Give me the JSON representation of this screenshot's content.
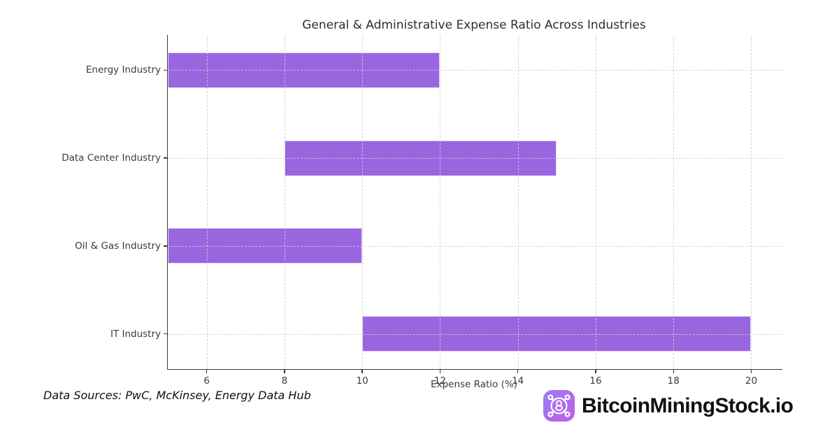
{
  "chart_data": {
    "type": "bar",
    "orientation": "horizontal",
    "title": "General & Administrative Expense Ratio Across Industries",
    "xlabel": "Expense Ratio (%)",
    "xlim": [
      5,
      20.8
    ],
    "xticks": [
      6,
      8,
      10,
      12,
      14,
      16,
      18,
      20
    ],
    "grid": true,
    "grid_style": "dashed",
    "legend": "none",
    "bar_color": "#9a66e0",
    "categories": [
      "Energy Industry",
      "Data Center Industry",
      "Oil & Gas Industry",
      "IT Industry"
    ],
    "bars": [
      {
        "category": "Energy Industry",
        "start": 5,
        "end": 12
      },
      {
        "category": "Data Center Industry",
        "start": 8,
        "end": 15
      },
      {
        "category": "Oil & Gas Industry",
        "start": 5,
        "end": 10
      },
      {
        "category": "IT Industry",
        "start": 10,
        "end": 20
      }
    ]
  },
  "footer": {
    "sources_text": "Data Sources: PwC, McKinsey, Energy Data Hub",
    "brand_name": "BitcoinMiningStock.io"
  },
  "colors": {
    "bar": "#9a66e0",
    "axis": "#3a3a3a",
    "grid": "#cdcdcd",
    "logo_gradient_start": "#9f7cf3",
    "logo_gradient_end": "#bc5fe9"
  }
}
